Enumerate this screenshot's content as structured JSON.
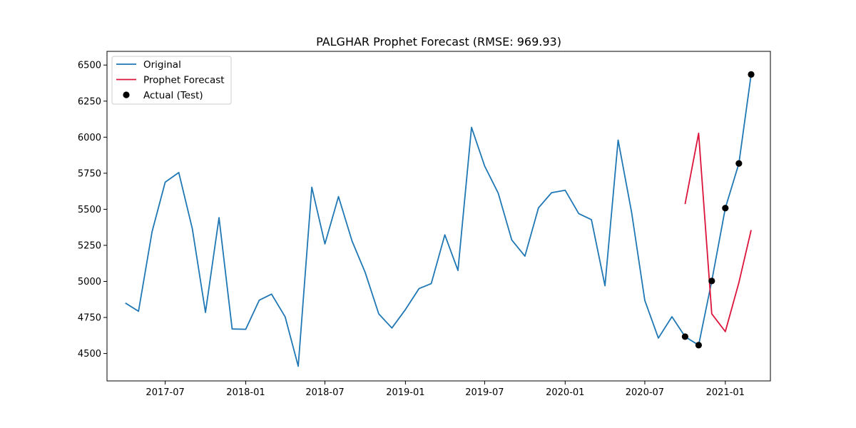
{
  "chart_data": {
    "type": "line",
    "title": "PALGHAR Prophet Forecast (RMSE: 969.93)",
    "xlabel": "",
    "ylabel": "",
    "x_range": [
      "2017-02-18",
      "2021-04-14"
    ],
    "ylim": [
      4310,
      6595
    ],
    "x_ticks": [
      "2017-07",
      "2018-01",
      "2018-07",
      "2019-01",
      "2019-07",
      "2020-01",
      "2020-07",
      "2021-01"
    ],
    "y_ticks": [
      4500,
      4750,
      5000,
      5250,
      5500,
      5750,
      6000,
      6250,
      6500
    ],
    "grid": false,
    "legend": "top-left",
    "series": [
      {
        "name": "Original",
        "kind": "line",
        "color": "#1f77b4",
        "points": [
          [
            "2017-04-01",
            4850
          ],
          [
            "2017-05-01",
            4793
          ],
          [
            "2017-06-01",
            5345
          ],
          [
            "2017-07-01",
            5688
          ],
          [
            "2017-08-01",
            5755
          ],
          [
            "2017-09-01",
            5365
          ],
          [
            "2017-10-01",
            4785
          ],
          [
            "2017-11-01",
            5442
          ],
          [
            "2017-12-01",
            4670
          ],
          [
            "2018-01-01",
            4668
          ],
          [
            "2018-02-01",
            4870
          ],
          [
            "2018-03-01",
            4912
          ],
          [
            "2018-04-01",
            4755
          ],
          [
            "2018-05-01",
            4412
          ],
          [
            "2018-06-01",
            5653
          ],
          [
            "2018-07-01",
            5260
          ],
          [
            "2018-08-01",
            5588
          ],
          [
            "2018-09-01",
            5280
          ],
          [
            "2018-10-01",
            5062
          ],
          [
            "2018-11-01",
            4775
          ],
          [
            "2018-12-01",
            4677
          ],
          [
            "2019-01-01",
            4805
          ],
          [
            "2019-02-01",
            4950
          ],
          [
            "2019-03-01",
            4985
          ],
          [
            "2019-04-01",
            5323
          ],
          [
            "2019-05-01",
            5076
          ],
          [
            "2019-06-01",
            6068
          ],
          [
            "2019-07-01",
            5800
          ],
          [
            "2019-08-01",
            5612
          ],
          [
            "2019-09-01",
            5287
          ],
          [
            "2019-10-01",
            5175
          ],
          [
            "2019-11-01",
            5510
          ],
          [
            "2019-12-01",
            5615
          ],
          [
            "2020-01-01",
            5632
          ],
          [
            "2020-02-01",
            5470
          ],
          [
            "2020-03-01",
            5428
          ],
          [
            "2020-04-01",
            4970
          ],
          [
            "2020-05-01",
            5980
          ],
          [
            "2020-06-01",
            5476
          ],
          [
            "2020-07-01",
            4868
          ],
          [
            "2020-08-01",
            4607
          ],
          [
            "2020-09-01",
            4755
          ],
          [
            "2020-10-01",
            4617
          ],
          [
            "2020-11-01",
            4558
          ],
          [
            "2020-12-01",
            5003
          ],
          [
            "2021-01-01",
            5508
          ],
          [
            "2021-02-01",
            5818
          ],
          [
            "2021-03-01",
            6435
          ]
        ]
      },
      {
        "name": "Prophet Forecast",
        "kind": "line",
        "color": "#dc143c",
        "points": [
          [
            "2020-10-01",
            5536
          ],
          [
            "2020-11-01",
            6027
          ],
          [
            "2020-12-01",
            4775
          ],
          [
            "2021-01-01",
            4652
          ],
          [
            "2021-02-01",
            4992
          ],
          [
            "2021-03-01",
            5356
          ]
        ]
      },
      {
        "name": "Actual (Test)",
        "kind": "scatter",
        "color": "#000000",
        "points": [
          [
            "2020-10-01",
            4617
          ],
          [
            "2020-11-01",
            4558
          ],
          [
            "2020-12-01",
            5003
          ],
          [
            "2021-01-01",
            5508
          ],
          [
            "2021-02-01",
            5818
          ],
          [
            "2021-03-01",
            6435
          ]
        ]
      }
    ]
  }
}
